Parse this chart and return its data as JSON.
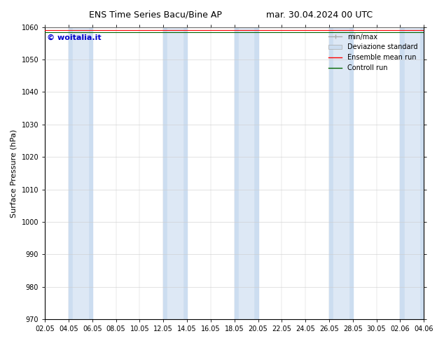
{
  "title_left": "ENS Time Series Bacu/Bine AP",
  "title_right": "mar. 30.04.2024 00 UTC",
  "ylabel": "Surface Pressure (hPa)",
  "ylim": [
    970,
    1060
  ],
  "yticks": [
    970,
    980,
    990,
    1000,
    1010,
    1020,
    1030,
    1040,
    1050,
    1060
  ],
  "xtick_labels": [
    "02.05",
    "04.05",
    "06.05",
    "08.05",
    "10.05",
    "12.05",
    "14.05",
    "16.05",
    "18.05",
    "20.05",
    "22.05",
    "24.05",
    "26.05",
    "28.05",
    "30.05",
    "02.06",
    "04.06"
  ],
  "background_color": "#ffffff",
  "plot_bg_color": "#ffffff",
  "band_color_outer": "#ccddf0",
  "band_color_inner": "#dde8f5",
  "ensemble_mean_color": "#ff0000",
  "control_run_color": "#006600",
  "minmax_color": "#aaaaaa",
  "watermark_text": "© woitalia.it",
  "watermark_color": "#0000cc",
  "title_fontsize": 9,
  "label_fontsize": 8,
  "tick_fontsize": 7,
  "legend_fontsize": 7,
  "band_ranges": [
    [
      "04.05",
      "06.05"
    ],
    [
      "12.05",
      "14.05"
    ],
    [
      "18.05",
      "20.05"
    ],
    [
      "26.05",
      "28.05"
    ],
    [
      "02.06",
      "04.06"
    ]
  ]
}
